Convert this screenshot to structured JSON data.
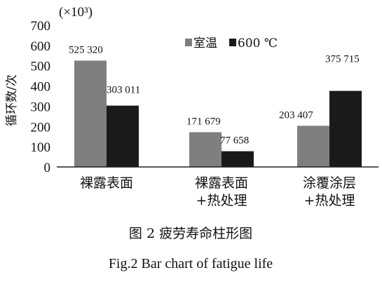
{
  "chart_data": {
    "type": "bar",
    "unit_label": "(×10³)",
    "ylabel": "循环数/次",
    "ylim": [
      0,
      700
    ],
    "yticks": [
      0,
      100,
      200,
      300,
      400,
      500,
      600,
      700
    ],
    "categories": [
      [
        "裸露表面"
      ],
      [
        "裸露表面",
        "+热处理"
      ],
      [
        "涂覆涂层",
        "+热处理"
      ]
    ],
    "series": [
      {
        "name": "室温",
        "color": "#7f7f7f",
        "values": [
          525.32,
          171.679,
          203.407
        ],
        "labels": [
          "525 320",
          "171 679",
          "203 407"
        ]
      },
      {
        "name": "600 ℃",
        "color": "#1a1a1a",
        "values": [
          303.011,
          77.658,
          375.715
        ],
        "labels": [
          "303 011",
          "77 658",
          "375 715"
        ]
      }
    ],
    "legend_position": "top-center",
    "grid": false
  },
  "caption": {
    "cn": "图 2  疲劳寿命柱形图",
    "en": "Fig.2  Bar chart of fatigue life"
  }
}
